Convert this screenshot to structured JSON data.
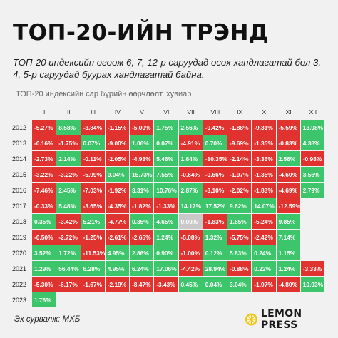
{
  "header": {
    "title": "ТОП-20-ИЙН ТРЭНД",
    "subtitle": "ТОП-20 индексийн өгөөж 6, 7, 12-р саруудад өсөх хандлагатай бол 3, 4, 5-р саруудад буурах хандлагатай байна."
  },
  "footer": {
    "source": "Эх сурвалж: МХБ",
    "brand": "LEMON PRESS"
  },
  "colors": {
    "positive": "#3dc56b",
    "negative": "#e0322f",
    "neutral": "#c9c9c9",
    "brand_icon": "#f2c318"
  },
  "chart_data": {
    "type": "heatmap",
    "title": "ТОП-20 индексийн сар бүрийн өөрчлөлт, хувиар",
    "x": [
      "I",
      "II",
      "III",
      "IV",
      "V",
      "VI",
      "VII",
      "VIII",
      "IX",
      "X",
      "XI",
      "XII"
    ],
    "y": [
      "2012",
      "2013",
      "2014",
      "2015",
      "2016",
      "2017",
      "2018",
      "2019",
      "2020",
      "2021",
      "2022",
      "2023"
    ],
    "values": [
      [
        -5.27,
        8.58,
        -3.84,
        -1.15,
        -5.0,
        1.75,
        2.56,
        -9.42,
        -1.88,
        -9.31,
        -5.59,
        13.98
      ],
      [
        -0.16,
        -1.75,
        0.07,
        -9.0,
        1.06,
        0.07,
        -4.91,
        0.7,
        -9.69,
        -1.35,
        -0.83,
        4.38
      ],
      [
        -2.73,
        2.14,
        -0.11,
        -2.05,
        -4.93,
        5.46,
        1.84,
        -10.35,
        -2.14,
        -3.36,
        2.56,
        -0.98
      ],
      [
        -3.22,
        -3.22,
        -5.99,
        0.04,
        15.73,
        7.55,
        -0.64,
        -0.66,
        -1.97,
        -1.35,
        -4.6,
        3.56
      ],
      [
        -7.46,
        2.45,
        -7.03,
        -1.92,
        3.31,
        10.76,
        2.87,
        -3.1,
        -2.02,
        -1.83,
        -4.69,
        2.79
      ],
      [
        -0.33,
        5.48,
        -3.65,
        -4.35,
        -1.82,
        -1.33,
        14.17,
        17.52,
        9.62,
        14.07,
        -12.59
      ],
      [
        0.35,
        -3.42,
        5.21,
        -4.77,
        0.35,
        4.65,
        0.0,
        -1.83,
        1.85,
        -5.24,
        9.85
      ],
      [
        -0.5,
        -2.72,
        -1.25,
        -2.61,
        -2.65,
        1.24,
        -5.08,
        1.32,
        -5.75,
        -2.42,
        7.14
      ],
      [
        3.52,
        1.72,
        -11.53,
        4.95,
        2.86,
        0.9,
        -1.0,
        0.12,
        5.83,
        0.24,
        1.15
      ],
      [
        1.29,
        56.44,
        6.28,
        4.95,
        6.24,
        17.06,
        -4.42,
        28.94,
        -0.88,
        0.22,
        1.24,
        -3.33
      ],
      [
        -5.3,
        -6.17,
        -1.67,
        -2.19,
        -8.47,
        -3.43,
        0.45,
        0.04,
        3.04,
        -1.97,
        -4.8,
        10.93
      ],
      [
        1.76
      ]
    ],
    "display": [
      [
        "-5.27%",
        "8.58%",
        "-3.84%",
        "-1.15%",
        "-5.00%",
        "1.75%",
        "2.56%",
        "-9.42%",
        "-1.88%",
        "-9.31%",
        "-5.59%",
        "13.98%"
      ],
      [
        "-0.16%",
        "-1.75%",
        "0.07%",
        "-9.00%",
        "1.06%",
        "0.07%",
        "-4.91%",
        "0.70%",
        "-9.69%",
        "-1.35%",
        "-0.83%",
        "4.38%"
      ],
      [
        "-2.73%",
        "2.14%",
        "-0.11%",
        "-2.05%",
        "-4.93%",
        "5.46%",
        "1.84%",
        "-10.35%",
        "-2.14%",
        "-3.36%",
        "2.56%",
        "-0.98%"
      ],
      [
        "-3.22%",
        "-3.22%",
        "-5.99%",
        "0.04%",
        "15.73%",
        "7.55%",
        "-0.64%",
        "-0.66%",
        "-1.97%",
        "-1.35%",
        "-4.60%",
        "3.56%"
      ],
      [
        "-7.46%",
        "2.45%",
        "-7.03%",
        "-1.92%",
        "3.31%",
        "10.76%",
        "2.87%",
        "-3.10%",
        "-2.02%",
        "-1.83%",
        "-4.69%",
        "2.79%"
      ],
      [
        "-0.33%",
        "5.48%",
        "-3.65%",
        "-4.35%",
        "-1.82%",
        "-1.33%",
        "14.17%",
        "17.52%",
        "9.62%",
        "14.07%",
        "-12.59%"
      ],
      [
        "0.35%",
        "-3.42%",
        "5.21%",
        "-4.77%",
        "0.35%",
        "4.65%",
        "0.00%",
        "-1.83%",
        "1.85%",
        "-5.24%",
        "9.85%"
      ],
      [
        "-0.50%",
        "-2.72%",
        "-1.25%",
        "-2.61%",
        "-2.65%",
        "1.24%",
        "-5.08%",
        "1.32%",
        "-5.75%",
        "-2.42%",
        "7.14%"
      ],
      [
        "3.52%",
        "1.72%",
        "-11.53%",
        "4.95%",
        "2.86%",
        "0.90%",
        "-1.00%",
        "0.12%",
        "5.83%",
        "0.24%",
        "1.15%"
      ],
      [
        "1.29%",
        "56.44%",
        "6.28%",
        "4.95%",
        "6.24%",
        "17.06%",
        "-4.42%",
        "28.94%",
        "-0.88%",
        "0.22%",
        "1.24%",
        "-3.33%"
      ],
      [
        "-5.30%",
        "-6.17%",
        "-1.67%",
        "-2.19%",
        "-8.47%",
        "-3.43%",
        "0.45%",
        "0.04%",
        "3.04%",
        "-1.97%",
        "-4.80%",
        "10.93%"
      ],
      [
        "1.76%"
      ]
    ],
    "legend": "none",
    "grid": false
  }
}
